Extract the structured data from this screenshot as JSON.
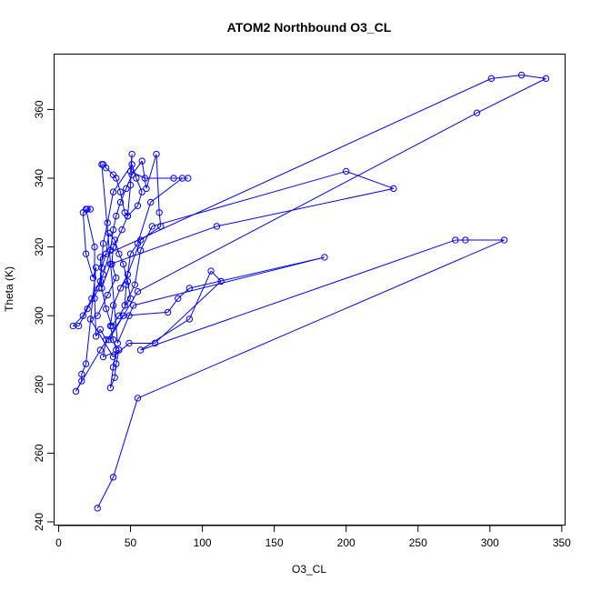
{
  "chart_data": {
    "type": "line",
    "title": "ATOM2 Northbound O3_CL",
    "xlabel": "O3_CL",
    "ylabel": "Theta (K)",
    "xlim": [
      0,
      350
    ],
    "ylim": [
      240,
      372
    ],
    "xticks": [
      "0",
      "50",
      "100",
      "150",
      "200",
      "250",
      "300",
      "350"
    ],
    "yticks": [
      "240",
      "260",
      "280",
      "300",
      "320",
      "340",
      "360"
    ],
    "grid": false,
    "legend": "none",
    "series_color": "#0000ff",
    "marker": "open-circle",
    "points": [
      [
        27,
        244
      ],
      [
        38,
        253
      ],
      [
        55,
        276
      ],
      [
        310,
        322
      ],
      [
        283,
        322
      ],
      [
        276,
        322
      ],
      [
        57,
        290
      ],
      [
        91,
        299
      ],
      [
        106,
        313
      ],
      [
        113,
        310
      ],
      [
        67,
        292
      ],
      [
        49,
        292
      ],
      [
        38,
        288
      ],
      [
        22,
        299
      ],
      [
        27,
        300
      ],
      [
        34,
        306
      ],
      [
        40,
        311
      ],
      [
        37,
        315
      ],
      [
        38,
        320
      ],
      [
        44,
        325
      ],
      [
        48,
        329
      ],
      [
        55,
        332
      ],
      [
        58,
        336
      ],
      [
        54,
        340
      ],
      [
        51,
        344
      ],
      [
        38,
        336
      ],
      [
        34,
        327
      ],
      [
        31,
        321
      ],
      [
        29,
        310
      ],
      [
        33,
        302
      ],
      [
        37,
        297
      ],
      [
        42,
        300
      ],
      [
        50,
        305
      ],
      [
        48,
        310
      ],
      [
        45,
        315
      ],
      [
        42,
        318
      ],
      [
        39,
        322
      ],
      [
        35,
        324
      ],
      [
        33,
        318
      ],
      [
        30,
        314
      ],
      [
        28,
        308
      ],
      [
        20,
        302
      ],
      [
        14,
        297
      ],
      [
        10,
        297
      ],
      [
        17,
        300
      ],
      [
        23,
        305
      ],
      [
        31,
        312
      ],
      [
        36,
        319
      ],
      [
        38,
        325
      ],
      [
        40,
        329
      ],
      [
        43,
        333
      ],
      [
        47,
        337
      ],
      [
        51,
        341
      ],
      [
        58,
        345
      ],
      [
        61,
        337
      ],
      [
        68,
        347
      ],
      [
        70,
        330
      ],
      [
        71,
        326
      ],
      [
        57,
        322
      ],
      [
        48,
        312
      ],
      [
        43,
        308
      ],
      [
        38,
        303
      ],
      [
        36,
        297
      ],
      [
        38,
        293
      ],
      [
        40,
        290
      ],
      [
        38,
        285
      ],
      [
        36,
        279
      ],
      [
        39,
        282
      ],
      [
        40,
        286
      ],
      [
        42,
        290
      ],
      [
        31,
        288
      ],
      [
        33,
        293
      ],
      [
        29,
        296
      ],
      [
        26,
        294
      ],
      [
        25,
        305
      ],
      [
        25,
        320
      ],
      [
        19,
        331
      ],
      [
        20,
        331
      ],
      [
        22,
        331
      ],
      [
        17,
        330
      ],
      [
        19,
        318
      ],
      [
        24,
        311
      ],
      [
        26,
        314
      ],
      [
        19,
        286
      ],
      [
        16,
        283
      ],
      [
        16,
        281
      ],
      [
        12,
        278
      ],
      [
        29,
        290
      ],
      [
        45,
        300
      ],
      [
        76,
        301
      ],
      [
        83,
        305
      ],
      [
        91,
        308
      ],
      [
        185,
        317
      ],
      [
        52,
        303
      ],
      [
        49,
        300
      ],
      [
        41,
        292
      ],
      [
        30,
        344
      ],
      [
        31,
        344
      ],
      [
        33,
        343
      ],
      [
        38,
        341
      ],
      [
        40,
        340
      ],
      [
        43,
        336
      ],
      [
        46,
        330
      ],
      [
        48,
        329
      ],
      [
        50,
        338
      ],
      [
        51,
        347
      ],
      [
        50,
        342
      ],
      [
        60,
        340
      ],
      [
        80,
        340
      ],
      [
        90,
        340
      ],
      [
        86,
        340
      ],
      [
        64,
        333
      ],
      [
        55,
        321
      ],
      [
        50,
        318
      ],
      [
        47,
        309
      ],
      [
        46,
        303
      ],
      [
        53,
        309
      ],
      [
        57,
        319
      ],
      [
        65,
        326
      ],
      [
        200,
        342
      ],
      [
        233,
        337
      ],
      [
        110,
        326
      ],
      [
        36,
        315
      ],
      [
        30,
        308
      ],
      [
        29,
        317
      ],
      [
        301,
        369
      ],
      [
        322,
        370
      ],
      [
        339,
        369
      ],
      [
        291,
        359
      ],
      [
        55,
        307
      ],
      [
        35,
        293
      ]
    ]
  }
}
